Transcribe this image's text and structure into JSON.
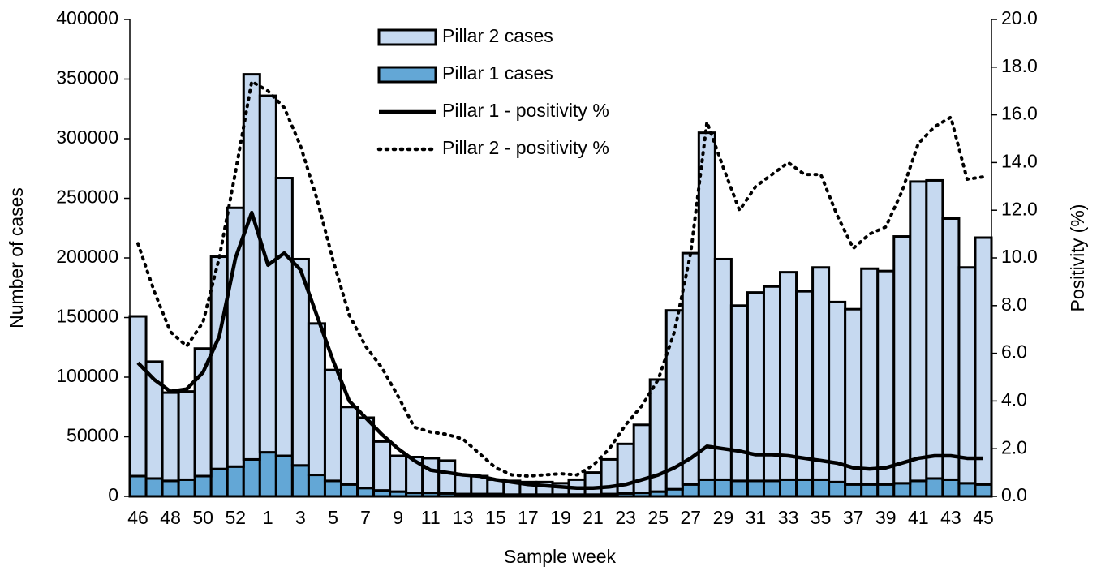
{
  "chart_data": {
    "type": "bar",
    "x_label": "Sample week",
    "y_label": "Number of cases",
    "y2_label": "Positivity (%)",
    "legend": "top",
    "categories": [
      "46",
      null,
      "48",
      null,
      "50",
      null,
      "52",
      null,
      "1",
      null,
      "3",
      null,
      "5",
      null,
      "7",
      null,
      "9",
      null,
      "11",
      null,
      "13",
      null,
      "15",
      null,
      "17",
      null,
      "19",
      null,
      "21",
      null,
      "23",
      null,
      "25",
      null,
      "27",
      null,
      "29",
      null,
      "31",
      null,
      "33",
      null,
      "35",
      null,
      "37",
      null,
      "39",
      null,
      "41",
      null,
      "43",
      null,
      "45"
    ],
    "ylim": [
      0,
      400000
    ],
    "yticks": [
      0,
      50000,
      100000,
      150000,
      200000,
      250000,
      300000,
      350000,
      400000
    ],
    "y2lim": [
      0,
      20
    ],
    "y2ticks": [
      {
        "value": 0,
        "label": "0.0"
      },
      {
        "value": 2,
        "label": "2.0"
      },
      {
        "value": 4,
        "label": "4.0"
      },
      {
        "value": 6,
        "label": "6.0"
      },
      {
        "value": 8,
        "label": "8.0"
      },
      {
        "value": 10,
        "label": "10.0"
      },
      {
        "value": 12,
        "label": "12.0"
      },
      {
        "value": 14,
        "label": "14.0"
      },
      {
        "value": 16,
        "label": "16.0"
      },
      {
        "value": 18,
        "label": "18.0"
      },
      {
        "value": 20,
        "label": "20.0"
      }
    ],
    "series": [
      {
        "name": "Pillar 2 cases",
        "type": "bar",
        "color": "#c6d9f0",
        "values": [
          134000,
          98000,
          74000,
          74000,
          107000,
          178000,
          217000,
          323000,
          299000,
          233000,
          173000,
          127000,
          93000,
          65000,
          59000,
          41000,
          30000,
          30000,
          29000,
          27500,
          16000,
          15000,
          12000,
          11500,
          10500,
          10500,
          9500,
          12500,
          18500,
          29000,
          41500,
          57000,
          94000,
          150000,
          194000,
          291000,
          185000,
          147000,
          158000,
          163000,
          174000,
          158000,
          178000,
          151000,
          147000,
          181000,
          179000,
          207000,
          251000,
          250000,
          219000,
          181000,
          207000
        ]
      },
      {
        "name": "Pillar 1 cases",
        "type": "bar",
        "color": "#63a7d6",
        "values": [
          17000,
          15000,
          13000,
          14000,
          17000,
          23000,
          25000,
          31000,
          37000,
          34000,
          26000,
          18000,
          13000,
          10000,
          7000,
          5000,
          4000,
          3000,
          3000,
          2500,
          2000,
          2000,
          2000,
          1500,
          1500,
          1500,
          1500,
          1500,
          1500,
          2000,
          2500,
          3000,
          4000,
          6000,
          10000,
          14000,
          14000,
          13000,
          13000,
          13000,
          14000,
          14000,
          14000,
          12000,
          10000,
          10000,
          10000,
          11000,
          13000,
          15000,
          14000,
          11000,
          10000
        ]
      },
      {
        "name": "Pillar 1 - positivity %",
        "type": "line",
        "axis": "y2",
        "color": "#000000",
        "dash": "solid",
        "values": [
          5.6,
          4.9,
          4.4,
          4.5,
          5.2,
          6.7,
          10.0,
          11.9,
          9.7,
          10.2,
          9.5,
          7.6,
          5.7,
          4.0,
          3.3,
          2.6,
          2.0,
          1.5,
          1.1,
          1.0,
          0.9,
          0.85,
          0.7,
          0.6,
          0.5,
          0.45,
          0.4,
          0.35,
          0.35,
          0.4,
          0.5,
          0.7,
          0.9,
          1.2,
          1.6,
          2.1,
          2.0,
          1.9,
          1.75,
          1.75,
          1.7,
          1.6,
          1.5,
          1.4,
          1.2,
          1.15,
          1.2,
          1.4,
          1.6,
          1.7,
          1.7,
          1.6,
          1.6
        ]
      },
      {
        "name": "Pillar 2 - positivity %",
        "type": "line",
        "axis": "y2",
        "color": "#000000",
        "dash": "dotted",
        "values": [
          10.6,
          8.6,
          6.9,
          6.3,
          7.3,
          10.0,
          13.6,
          17.4,
          17.0,
          16.3,
          14.7,
          12.5,
          9.9,
          7.6,
          6.3,
          5.4,
          4.2,
          2.9,
          2.7,
          2.6,
          2.4,
          1.8,
          1.2,
          0.9,
          0.85,
          0.9,
          0.95,
          0.9,
          1.3,
          2.0,
          3.0,
          3.8,
          4.9,
          6.9,
          10.2,
          15.7,
          13.8,
          12.0,
          13.0,
          13.5,
          14.0,
          13.5,
          13.5,
          11.8,
          10.4,
          11.0,
          11.3,
          12.8,
          14.8,
          15.5,
          15.9,
          13.3,
          13.4
        ]
      }
    ]
  }
}
